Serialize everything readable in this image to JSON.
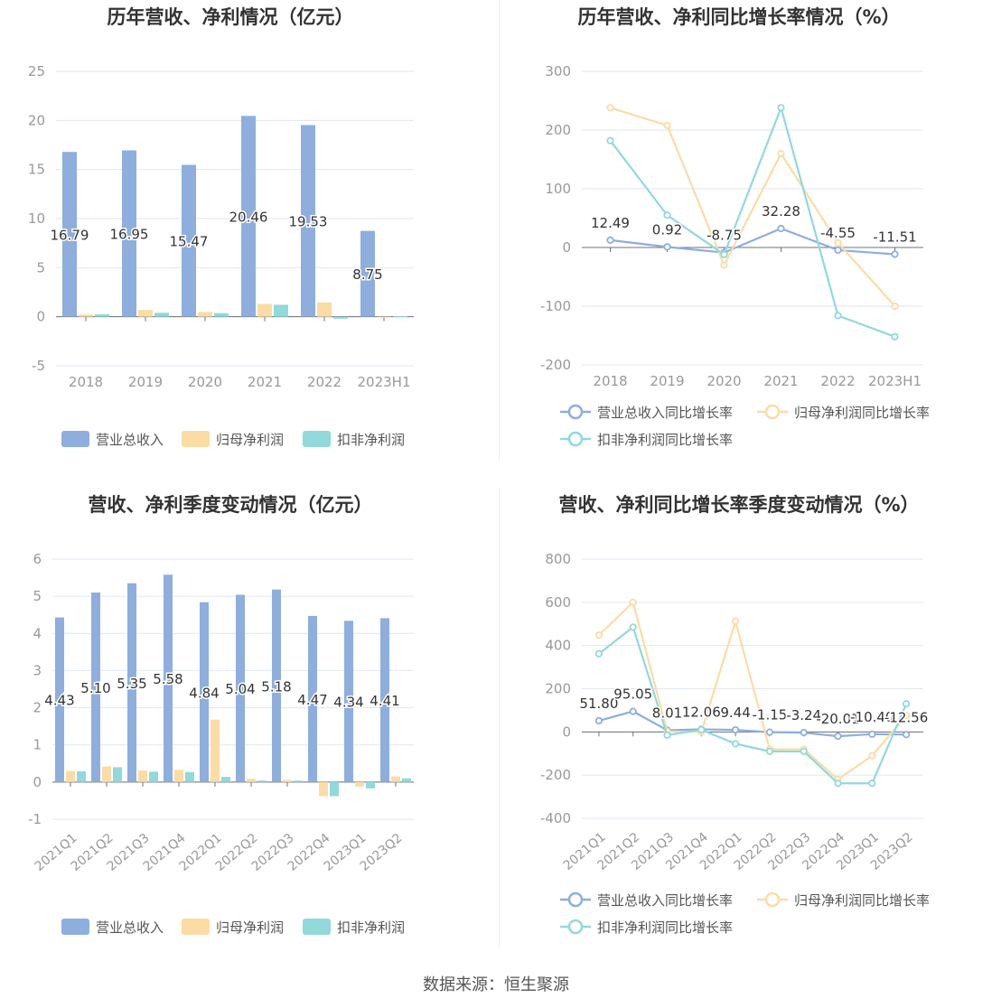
{
  "colors": {
    "revenue": "#8eaedd",
    "net_profit": "#fbdca5",
    "deducted_profit": "#91d9db",
    "axis": "#6e7079",
    "grid": "#e0e6f1",
    "label": "#333333",
    "tick": "#999999",
    "title": "#333333"
  },
  "legend_bar": [
    "营业总收入",
    "归母净利润",
    "扣非净利润"
  ],
  "legend_line": [
    "营业总收入同比增长率",
    "归母净利润同比增长率",
    "扣非净利润同比增长率"
  ],
  "source": "数据来源：恒生聚源",
  "chart_data": [
    {
      "type": "bar",
      "title": "历年营收、净利情况（亿元）",
      "categories": [
        "2018",
        "2019",
        "2020",
        "2021",
        "2022",
        "2023H1"
      ],
      "ylim": [
        -5,
        25
      ],
      "yticks": [
        -5,
        0,
        5,
        10,
        15,
        20,
        25
      ],
      "series": [
        {
          "name": "营业总收入",
          "values": [
            16.79,
            16.95,
            15.47,
            20.46,
            19.53,
            8.75
          ],
          "labels": [
            "16.79",
            "16.95",
            "15.47",
            "20.46",
            "19.53",
            "8.75"
          ]
        },
        {
          "name": "归母净利润",
          "values": [
            0.22,
            0.69,
            0.48,
            1.31,
            1.46,
            0.0
          ]
        },
        {
          "name": "扣非净利润",
          "values": [
            0.25,
            0.4,
            0.37,
            1.22,
            -0.2,
            0.05
          ]
        }
      ],
      "grid": true,
      "legend": "bottom"
    },
    {
      "type": "line",
      "title": "历年营收、净利同比增长率情况（%）",
      "categories": [
        "2018",
        "2019",
        "2020",
        "2021",
        "2022",
        "2023H1"
      ],
      "ylim": [
        -200,
        300
      ],
      "yticks": [
        -200,
        -100,
        0,
        100,
        200,
        300
      ],
      "series": [
        {
          "name": "营业总收入同比增长率",
          "values": [
            12.49,
            0.92,
            -8.75,
            32.28,
            -4.55,
            -11.51
          ],
          "labels": [
            "12.49",
            "0.92",
            "-8.75",
            "32.28",
            "-4.55",
            "-11.51"
          ]
        },
        {
          "name": "归母净利润同比增长率",
          "values": [
            238,
            208,
            -30,
            160,
            8,
            -100
          ]
        },
        {
          "name": "扣非净利润同比增长率",
          "values": [
            182,
            55,
            -12,
            238,
            -116,
            -152
          ]
        }
      ],
      "grid": true,
      "legend": "bottom"
    },
    {
      "type": "bar",
      "title": "营收、净利季度变动情况（亿元）",
      "categories": [
        "2021Q1",
        "2021Q2",
        "2021Q3",
        "2021Q4",
        "2022Q1",
        "2022Q2",
        "2022Q3",
        "2022Q4",
        "2023Q1",
        "2023Q2"
      ],
      "ylim": [
        -1,
        6
      ],
      "yticks": [
        -1,
        0,
        1,
        2,
        3,
        4,
        5,
        6
      ],
      "series": [
        {
          "name": "营业总收入",
          "values": [
            4.43,
            5.1,
            5.35,
            5.58,
            4.84,
            5.04,
            5.18,
            4.47,
            4.34,
            4.41
          ],
          "labels": [
            "4.43",
            "5.10",
            "5.35",
            "5.58",
            "4.84",
            "5.04",
            "5.18",
            "4.47",
            "4.34",
            "4.41"
          ]
        },
        {
          "name": "归母净利润",
          "values": [
            0.3,
            0.42,
            0.31,
            0.33,
            1.68,
            0.09,
            0.06,
            -0.38,
            -0.12,
            0.15
          ]
        },
        {
          "name": "扣非净利润",
          "values": [
            0.29,
            0.4,
            0.28,
            0.27,
            0.14,
            0.04,
            0.04,
            -0.38,
            -0.17,
            0.1
          ]
        }
      ],
      "grid": true,
      "legend": "bottom"
    },
    {
      "type": "line",
      "title": "营收、净利同比增长率季度变动情况（%）",
      "categories": [
        "2021Q1",
        "2021Q2",
        "2021Q3",
        "2021Q4",
        "2022Q1",
        "2022Q2",
        "2022Q3",
        "2022Q4",
        "2023Q1",
        "2023Q2"
      ],
      "ylim": [
        -400,
        800
      ],
      "yticks": [
        -400,
        -200,
        0,
        200,
        400,
        600,
        800
      ],
      "series": [
        {
          "name": "营业总收入同比增长率",
          "values": [
            51.8,
            95.05,
            8.01,
            12.06,
            9.44,
            -1.15,
            -3.24,
            -20.01,
            -10.4,
            -12.56
          ],
          "labels": [
            "51.80",
            "95.05",
            "8.01",
            "12.06",
            "9.44",
            "-1.15",
            "-3.24",
            "-20.01",
            "-10.40",
            "-12.56"
          ]
        },
        {
          "name": "归母净利润同比增长率",
          "values": [
            448,
            600,
            2,
            0,
            512,
            -80,
            -80,
            -220,
            -110,
            75
          ]
        },
        {
          "name": "扣非净利润同比增长率",
          "values": [
            362,
            485,
            -15,
            10,
            -55,
            -90,
            -90,
            -238,
            -238,
            130
          ]
        }
      ],
      "grid": true,
      "legend": "bottom"
    }
  ]
}
